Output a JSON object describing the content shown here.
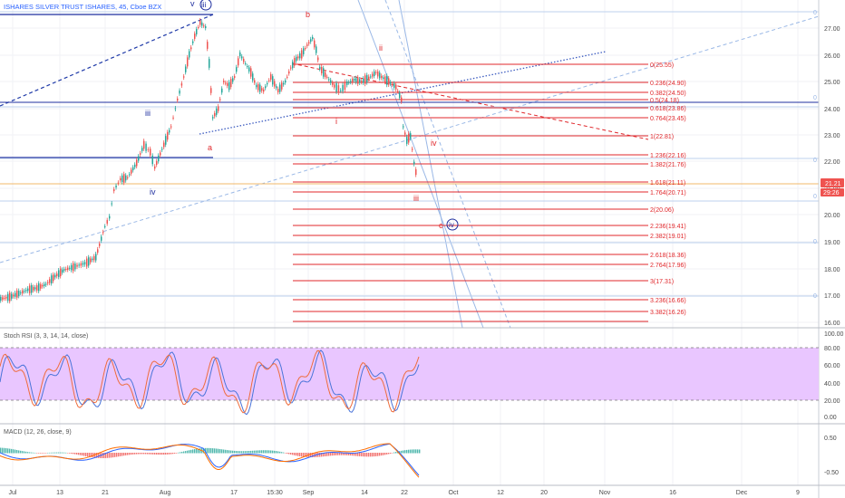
{
  "header": {
    "title": "ISHARES SILVER TRUST ISHARES, 45, Cboe BZX",
    "title_color": "#2962ff"
  },
  "colors": {
    "up": "#26a69a",
    "down": "#ef5350",
    "fib": "#e0272b",
    "wave_blue": "#1f2f9f",
    "wave_red": "#e0272b",
    "channel": "#9ab8e6",
    "rsi_fill": "#e9c6ff",
    "rsi_k": "#4a74d9",
    "rsi_d": "#ef6c3c",
    "macd_line": "#2962ff",
    "macd_signal": "#ff6d00"
  },
  "price_axis": {
    "ticks": [
      "27.00",
      "26.00",
      "25.00",
      "24.00",
      "23.00",
      "22.00",
      "21.00",
      "20.00",
      "19.00",
      "18.00",
      "17.00",
      "16.00"
    ],
    "current_price": "21.21",
    "countdown": "29:26"
  },
  "time_axis": {
    "labels": [
      "Jul",
      "13",
      "21",
      "Aug",
      "17",
      "15:30",
      "Sep",
      "14",
      "22",
      "Oct",
      "12",
      "20",
      "Nov",
      "16",
      "Dec",
      "9"
    ]
  },
  "fib_levels": [
    {
      "label": "0(25.55)"
    },
    {
      "label": "0.236(24.90)"
    },
    {
      "label": "0.382(24.50)"
    },
    {
      "label": "0.5(24.18)"
    },
    {
      "label": "0.618(23.86)"
    },
    {
      "label": "0.764(23.45)"
    },
    {
      "label": "1(22.81)"
    },
    {
      "label": "1.236(22.16)"
    },
    {
      "label": "1.382(21.76)"
    },
    {
      "label": "1.618(21.11)"
    },
    {
      "label": "1.764(20.71)"
    },
    {
      "label": "2(20.06)"
    },
    {
      "label": "2.236(19.41)"
    },
    {
      "label": "2.382(19.01)"
    },
    {
      "label": "2.618(18.36)"
    },
    {
      "label": "2.764(17.96)"
    },
    {
      "label": "3(17.31)"
    },
    {
      "label": "3.236(16.66)"
    },
    {
      "label": "3.382(16.26)"
    }
  ],
  "wave_labels": {
    "v": "v",
    "iii_top": "iii",
    "iii_mid": "iii",
    "iv_left": "iv",
    "a": "a",
    "b": "b",
    "ii": "ii",
    "i": "i",
    "iv_right": "iv",
    "iii_red": "iii",
    "c": "c",
    "iv_circle": "iv"
  },
  "rsi_panel": {
    "title": "Stoch RSI (3, 3, 14, 14, close)",
    "ticks": [
      "80.00",
      "60.00",
      "40.00",
      "20.00",
      "0.00"
    ]
  },
  "macd_panel": {
    "title": "MACD (12, 26, close, 9)",
    "ticks": [
      "0.50",
      "-0.50"
    ]
  },
  "right_markers": [
    "0",
    "0",
    "0",
    "0",
    "0",
    "0",
    "0"
  ]
}
